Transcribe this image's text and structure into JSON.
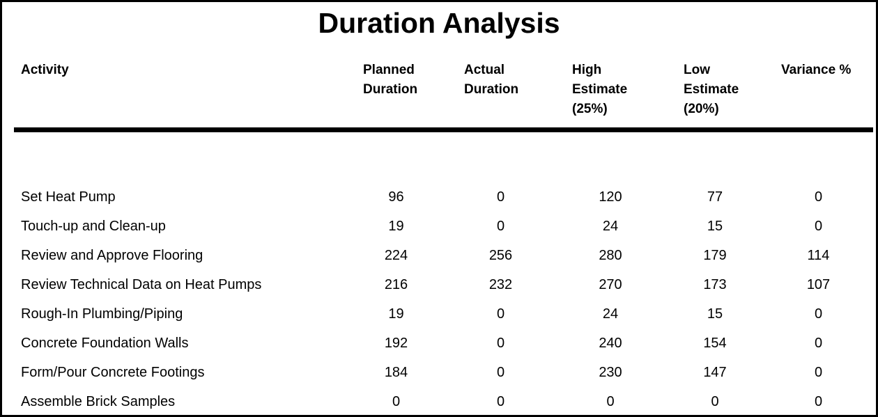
{
  "title": "Duration Analysis",
  "table": {
    "columns": {
      "activity": {
        "label": "Activity"
      },
      "planned": {
        "label": "Planned\nDuration"
      },
      "actual": {
        "label": "Actual\nDuration"
      },
      "high": {
        "label": "High\nEstimate\n(25%)"
      },
      "low": {
        "label": "Low\nEstimate\n(20%)"
      },
      "variance": {
        "label": "Variance %"
      }
    },
    "rows": [
      {
        "activity": "Set Heat Pump",
        "planned": "96",
        "actual": "0",
        "high": "120",
        "low": "77",
        "variance": "0"
      },
      {
        "activity": "Touch-up and Clean-up",
        "planned": "19",
        "actual": "0",
        "high": "24",
        "low": "15",
        "variance": "0"
      },
      {
        "activity": "Review and Approve Flooring",
        "planned": "224",
        "actual": "256",
        "high": "280",
        "low": "179",
        "variance": "114"
      },
      {
        "activity": "Review Technical Data on Heat Pumps",
        "planned": "216",
        "actual": "232",
        "high": "270",
        "low": "173",
        "variance": "107"
      },
      {
        "activity": "Rough-In Plumbing/Piping",
        "planned": "19",
        "actual": "0",
        "high": "24",
        "low": "15",
        "variance": "0"
      },
      {
        "activity": "Concrete Foundation Walls",
        "planned": "192",
        "actual": "0",
        "high": "240",
        "low": "154",
        "variance": "0"
      },
      {
        "activity": "Form/Pour Concrete Footings",
        "planned": "184",
        "actual": "0",
        "high": "230",
        "low": "147",
        "variance": "0"
      },
      {
        "activity": "Assemble Brick Samples",
        "planned": "0",
        "actual": "0",
        "high": "0",
        "low": "0",
        "variance": "0"
      }
    ]
  },
  "colors": {
    "text": "#000000",
    "background": "#ffffff",
    "rule": "#000000"
  }
}
